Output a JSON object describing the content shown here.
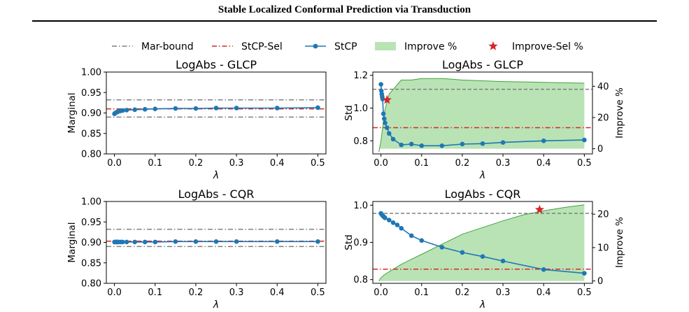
{
  "header": {
    "title": "Stable Localized Conformal Prediction via Transduction"
  },
  "legend": {
    "items": [
      {
        "label": "Mar-bound",
        "style": "dashdot",
        "color": "#808080"
      },
      {
        "label": "StCP-Sel",
        "style": "dashdot",
        "color": "#d62728"
      },
      {
        "label": "StCP",
        "style": "line-marker",
        "color": "#1f77b4"
      },
      {
        "label": "Improve %",
        "style": "patch",
        "color": "#b9e3b5"
      },
      {
        "label": "Improve-Sel %",
        "style": "star",
        "color": "#d62728"
      }
    ]
  },
  "chart_data": [
    {
      "type": "line",
      "title": "LogAbs - GLCP",
      "xlabel": "λ",
      "ylabel": "Marginal",
      "xlim": [
        -0.02,
        0.52
      ],
      "ylim": [
        0.8,
        1.0
      ],
      "xticks": [
        0.0,
        0.1,
        0.2,
        0.3,
        0.4,
        0.5
      ],
      "yticks": [
        0.8,
        0.85,
        0.9,
        0.95,
        1.0
      ],
      "xtick_labels": [
        "0.0",
        "0.1",
        "0.2",
        "0.3",
        "0.4",
        "0.5"
      ],
      "ytick_labels": [
        "0.80",
        "0.85",
        "0.90",
        "0.95",
        "1.00"
      ],
      "hlines": [
        {
          "y": 0.932,
          "series": "Mar-bound"
        },
        {
          "y": 0.89,
          "series": "Mar-bound"
        },
        {
          "y": 0.91,
          "series": "StCP-Sel"
        }
      ],
      "series": [
        {
          "name": "StCP",
          "x": [
            0.0,
            0.002,
            0.004,
            0.006,
            0.008,
            0.01,
            0.015,
            0.02,
            0.03,
            0.05,
            0.075,
            0.1,
            0.15,
            0.2,
            0.25,
            0.3,
            0.4,
            0.5
          ],
          "values": [
            0.898,
            0.9,
            0.901,
            0.902,
            0.903,
            0.904,
            0.905,
            0.906,
            0.907,
            0.908,
            0.909,
            0.91,
            0.911,
            0.911,
            0.912,
            0.912,
            0.912,
            0.913
          ]
        }
      ]
    },
    {
      "type": "line",
      "title": "LogAbs - GLCP",
      "xlabel": "λ",
      "ylabel": "Std",
      "y2label": "Improve %",
      "xlim": [
        -0.02,
        0.52
      ],
      "ylim": [
        0.72,
        1.22
      ],
      "y2lim": [
        -3.3,
        49.1
      ],
      "xticks": [
        0.0,
        0.1,
        0.2,
        0.3,
        0.4,
        0.5
      ],
      "yticks": [
        0.8,
        1.0,
        1.2
      ],
      "y2ticks": [
        0,
        20,
        40
      ],
      "xtick_labels": [
        "0.0",
        "0.1",
        "0.2",
        "0.3",
        "0.4",
        "0.5"
      ],
      "ytick_labels": [
        "0.8",
        "1.0",
        "1.2"
      ],
      "y2tick_labels": [
        "0",
        "20",
        "40"
      ],
      "hlines": [
        {
          "y": 1.115,
          "series": "Mar-bound"
        },
        {
          "y": 0.88,
          "series": "StCP-Sel"
        }
      ],
      "series": [
        {
          "name": "StCP",
          "x": [
            0.0,
            0.001,
            0.002,
            0.003,
            0.004,
            0.006,
            0.008,
            0.01,
            0.015,
            0.02,
            0.03,
            0.05,
            0.075,
            0.1,
            0.15,
            0.2,
            0.25,
            0.3,
            0.4,
            0.5
          ],
          "values": [
            1.145,
            1.105,
            1.085,
            1.07,
            1.055,
            0.965,
            0.935,
            0.91,
            0.88,
            0.845,
            0.81,
            0.775,
            0.78,
            0.77,
            0.77,
            0.78,
            0.783,
            0.79,
            0.8,
            0.805
          ]
        },
        {
          "name": "Improve %",
          "axis": "right",
          "area": true,
          "x": [
            -0.005,
            0.0,
            0.005,
            0.01,
            0.02,
            0.03,
            0.05,
            0.075,
            0.1,
            0.15,
            0.2,
            0.25,
            0.3,
            0.4,
            0.5
          ],
          "values": [
            -2,
            5,
            15,
            25,
            35,
            38,
            44,
            44,
            45,
            45,
            44,
            43.5,
            43,
            42.5,
            42
          ]
        }
      ],
      "markers": [
        {
          "x": 0.015,
          "y": 1.05,
          "series": "Improve-Sel %"
        }
      ]
    },
    {
      "type": "line",
      "title": "LogAbs - CQR",
      "xlabel": "λ",
      "ylabel": "Marginal",
      "xlim": [
        -0.02,
        0.52
      ],
      "ylim": [
        0.8,
        1.0
      ],
      "xticks": [
        0.0,
        0.1,
        0.2,
        0.3,
        0.4,
        0.5
      ],
      "yticks": [
        0.8,
        0.85,
        0.9,
        0.95,
        1.0
      ],
      "xtick_labels": [
        "0.0",
        "0.1",
        "0.2",
        "0.3",
        "0.4",
        "0.5"
      ],
      "ytick_labels": [
        "0.80",
        "0.85",
        "0.90",
        "0.95",
        "1.00"
      ],
      "hlines": [
        {
          "y": 0.932,
          "series": "Mar-bound"
        },
        {
          "y": 0.89,
          "series": "Mar-bound"
        },
        {
          "y": 0.903,
          "series": "StCP-Sel"
        }
      ],
      "series": [
        {
          "name": "StCP",
          "x": [
            0.0,
            0.002,
            0.004,
            0.006,
            0.008,
            0.01,
            0.015,
            0.02,
            0.03,
            0.05,
            0.075,
            0.1,
            0.15,
            0.2,
            0.25,
            0.3,
            0.4,
            0.5
          ],
          "values": [
            0.901,
            0.901,
            0.901,
            0.901,
            0.901,
            0.901,
            0.901,
            0.901,
            0.901,
            0.901,
            0.901,
            0.901,
            0.902,
            0.902,
            0.902,
            0.902,
            0.902,
            0.902
          ]
        }
      ]
    },
    {
      "type": "line",
      "title": "LogAbs - CQR",
      "xlabel": "λ",
      "ylabel": "Std",
      "y2label": "Improve %",
      "xlim": [
        -0.02,
        0.52
      ],
      "ylim": [
        0.79,
        1.01
      ],
      "y2lim": [
        -0.7,
        23.8
      ],
      "xticks": [
        0.0,
        0.1,
        0.2,
        0.3,
        0.4,
        0.5
      ],
      "yticks": [
        0.8,
        0.9,
        1.0
      ],
      "y2ticks": [
        0,
        10,
        20
      ],
      "xtick_labels": [
        "0.0",
        "0.1",
        "0.2",
        "0.3",
        "0.4",
        "0.5"
      ],
      "ytick_labels": [
        "0.8",
        "0.9",
        "1.0"
      ],
      "y2tick_labels": [
        "0",
        "10",
        "20"
      ],
      "hlines": [
        {
          "y": 0.978,
          "series": "Mar-bound"
        },
        {
          "y": 0.828,
          "series": "StCP-Sel"
        }
      ],
      "series": [
        {
          "name": "StCP",
          "x": [
            0.0,
            0.002,
            0.004,
            0.006,
            0.008,
            0.01,
            0.02,
            0.03,
            0.04,
            0.05,
            0.075,
            0.1,
            0.15,
            0.2,
            0.25,
            0.3,
            0.4,
            0.5
          ],
          "values": [
            0.978,
            0.975,
            0.972,
            0.97,
            0.968,
            0.966,
            0.96,
            0.953,
            0.947,
            0.938,
            0.918,
            0.905,
            0.887,
            0.873,
            0.862,
            0.85,
            0.827,
            0.817
          ]
        },
        {
          "name": "Improve %",
          "axis": "right",
          "area": true,
          "x": [
            -0.005,
            0.0,
            0.01,
            0.03,
            0.05,
            0.075,
            0.1,
            0.15,
            0.2,
            0.25,
            0.3,
            0.35,
            0.4,
            0.45,
            0.5
          ],
          "values": [
            0,
            1,
            2,
            3.5,
            5,
            6.5,
            8,
            11,
            14,
            16,
            18,
            19.8,
            21,
            22,
            22.8
          ]
        }
      ],
      "markers": [
        {
          "x": 0.39,
          "y": 0.988,
          "series": "Improve-Sel %"
        }
      ]
    }
  ]
}
